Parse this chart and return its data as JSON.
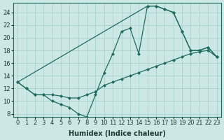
{
  "xlabel": "Humidex (Indice chaleur)",
  "background_color": "#cce8e4",
  "grid_color": "#aed4cf",
  "line_color": "#1e6b5e",
  "xlim": [
    -0.5,
    23.5
  ],
  "ylim": [
    7.5,
    25.5
  ],
  "xticks": [
    0,
    1,
    2,
    3,
    4,
    5,
    6,
    7,
    8,
    9,
    10,
    11,
    12,
    13,
    14,
    15,
    16,
    17,
    18,
    19,
    20,
    21,
    22,
    23
  ],
  "yticks": [
    8,
    10,
    12,
    14,
    16,
    18,
    20,
    22,
    24
  ],
  "line1_x": [
    0,
    1,
    2,
    3,
    4,
    5,
    6,
    7,
    8,
    9,
    10,
    11,
    12,
    13,
    14,
    15,
    16,
    17,
    18,
    19,
    20,
    21,
    22,
    23
  ],
  "line1_y": [
    13,
    12,
    11,
    11,
    10,
    9.5,
    9,
    8,
    7.5,
    11,
    14.5,
    17.5,
    21,
    21.5,
    17.5,
    25,
    25,
    24.5,
    24,
    21,
    18,
    18,
    18.5,
    17
  ],
  "line2_x": [
    0,
    1,
    2,
    3,
    4,
    5,
    6,
    7,
    8,
    9,
    10,
    11,
    12,
    13,
    14,
    15,
    16,
    17,
    18,
    19,
    20,
    21,
    22,
    23
  ],
  "line2_y": [
    13,
    12,
    11,
    11,
    11,
    10.8,
    10.5,
    10.5,
    11,
    11.5,
    12.5,
    13,
    13.5,
    14,
    14.5,
    15,
    15.5,
    16,
    16.5,
    17,
    17.5,
    17.8,
    18,
    17
  ],
  "line3_x": [
    0,
    15,
    16,
    17,
    18,
    19,
    20,
    21,
    22,
    23
  ],
  "line3_y": [
    13,
    25,
    25,
    24.5,
    24,
    21,
    18,
    18,
    18.5,
    17
  ],
  "xlabel_fontsize": 7,
  "tick_fontsize": 6
}
